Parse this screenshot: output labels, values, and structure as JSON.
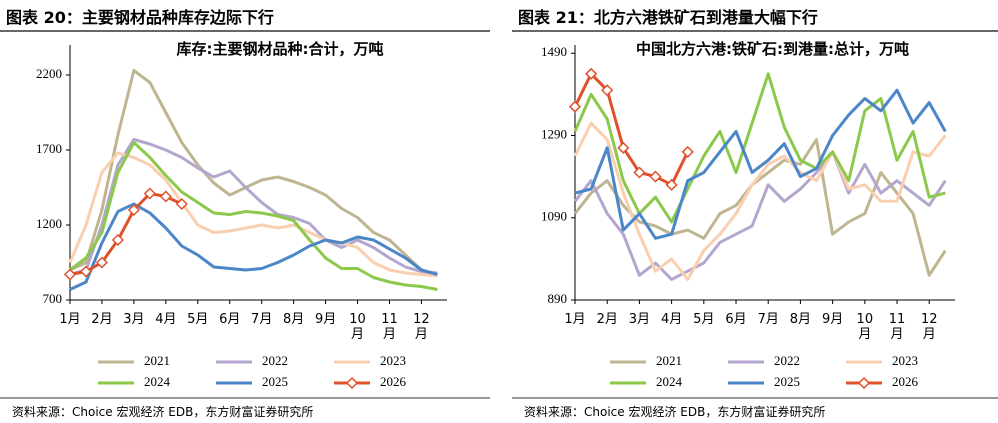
{
  "chart_data": [
    {
      "type": "line",
      "title": "图表 20：主要钢材品种库存边际下行",
      "subtitle": "库存:主要钢材品种:合计，万吨",
      "categories": [
        "1月",
        null,
        "2月",
        null,
        "3月",
        null,
        "4月",
        null,
        "5月",
        null,
        "6月",
        null,
        "7月",
        null,
        "8月",
        null,
        "9月",
        null,
        "10\n月",
        null,
        "11\n月",
        null,
        "12\n月",
        null
      ],
      "ylim": [
        700,
        2400
      ],
      "yticks": [
        700,
        1200,
        1700,
        2200
      ],
      "series": [
        {
          "name": "2021",
          "color": "#bfb591",
          "values": [
            900,
            950,
            1300,
            1800,
            2230,
            2150,
            1950,
            1750,
            1600,
            1480,
            1400,
            1450,
            1500,
            1520,
            1490,
            1450,
            1400,
            1310,
            1250,
            1150,
            1100,
            1000,
            900,
            870
          ]
        },
        {
          "name": "2022",
          "color": "#b4a6cf",
          "values": [
            870,
            900,
            1200,
            1600,
            1770,
            1740,
            1700,
            1650,
            1580,
            1520,
            1560,
            1450,
            1350,
            1270,
            1250,
            1210,
            1100,
            1050,
            1100,
            1050,
            980,
            920,
            890,
            880
          ]
        },
        {
          "name": "2023",
          "color": "#f9cfb0",
          "values": [
            950,
            1200,
            1550,
            1680,
            1650,
            1600,
            1500,
            1350,
            1200,
            1150,
            1160,
            1180,
            1200,
            1180,
            1200,
            1150,
            1100,
            1080,
            1050,
            950,
            900,
            880,
            870,
            860
          ]
        },
        {
          "name": "2024",
          "color": "#8cc84b",
          "values": [
            900,
            980,
            1150,
            1550,
            1750,
            1650,
            1530,
            1420,
            1350,
            1280,
            1270,
            1290,
            1280,
            1260,
            1230,
            1100,
            980,
            910,
            910,
            850,
            820,
            800,
            790,
            770
          ]
        },
        {
          "name": "2025",
          "color": "#4a86c8",
          "values": [
            770,
            820,
            1080,
            1290,
            1340,
            1280,
            1180,
            1060,
            1000,
            920,
            910,
            900,
            910,
            950,
            1000,
            1060,
            1100,
            1080,
            1120,
            1100,
            1040,
            980,
            900,
            870
          ]
        },
        {
          "name": "2026",
          "color": "#e0502a",
          "marker": "diamond",
          "values": [
            870,
            890,
            950,
            1100,
            1300,
            1410,
            1390,
            1340,
            null,
            null,
            null,
            null,
            null,
            null,
            null,
            null,
            null,
            null,
            null,
            null,
            null,
            null,
            null,
            null
          ]
        }
      ],
      "source": "资料来源：Choice 宏观经济 EDB，东方财富证券研究所"
    },
    {
      "type": "line",
      "title": "图表 21：北方六港铁矿石到港量大幅下行",
      "subtitle": "中国北方六港:铁矿石:到港量:总计，万吨",
      "categories": [
        "1月",
        null,
        "2月",
        null,
        "3月",
        null,
        "4月",
        null,
        "5月",
        null,
        "6月",
        null,
        "7月",
        null,
        "8月",
        null,
        "9月",
        null,
        "10\n月",
        null,
        "11\n月",
        null,
        "12\n月",
        null
      ],
      "ylim": [
        890,
        1510
      ],
      "yticks": [
        890,
        1090,
        1290,
        1490
      ],
      "series": [
        {
          "name": "2021",
          "color": "#bfb591",
          "values": [
            1100,
            1150,
            1180,
            1120,
            1080,
            1070,
            1050,
            1060,
            1040,
            1100,
            1120,
            1170,
            1200,
            1230,
            1220,
            1280,
            1050,
            1080,
            1100,
            1200,
            1150,
            1100,
            950,
            1010
          ]
        },
        {
          "name": "2022",
          "color": "#b4a6cf",
          "values": [
            1130,
            1180,
            1100,
            1050,
            950,
            980,
            940,
            960,
            980,
            1030,
            1050,
            1070,
            1170,
            1130,
            1160,
            1200,
            1250,
            1150,
            1220,
            1150,
            1180,
            1150,
            1120,
            1180
          ]
        },
        {
          "name": "2023",
          "color": "#f9cfb0",
          "values": [
            1240,
            1320,
            1280,
            1150,
            1050,
            960,
            990,
            940,
            1010,
            1050,
            1100,
            1170,
            1220,
            1240,
            1200,
            1180,
            1250,
            1160,
            1170,
            1130,
            1130,
            1250,
            1240,
            1290
          ]
        },
        {
          "name": "2024",
          "color": "#8cc84b",
          "values": [
            1300,
            1390,
            1330,
            1180,
            1100,
            1140,
            1080,
            1160,
            1240,
            1300,
            1200,
            1320,
            1440,
            1310,
            1230,
            1210,
            1250,
            1180,
            1350,
            1380,
            1230,
            1300,
            1140,
            1150
          ]
        },
        {
          "name": "2025",
          "color": "#4a86c8",
          "values": [
            1150,
            1160,
            1260,
            1060,
            1100,
            1040,
            1050,
            1180,
            1200,
            1250,
            1300,
            1200,
            1230,
            1270,
            1190,
            1210,
            1290,
            1340,
            1380,
            1350,
            1400,
            1320,
            1370,
            1300
          ]
        },
        {
          "name": "2026",
          "color": "#e0502a",
          "marker": "diamond",
          "values": [
            1360,
            1440,
            1400,
            1260,
            1200,
            1190,
            1170,
            1250,
            null,
            null,
            null,
            null,
            null,
            null,
            null,
            null,
            null,
            null,
            null,
            null,
            null,
            null,
            null,
            null
          ]
        }
      ],
      "source": "资料来源：Choice 宏观经济 EDB，东方财富证券研究所"
    }
  ]
}
